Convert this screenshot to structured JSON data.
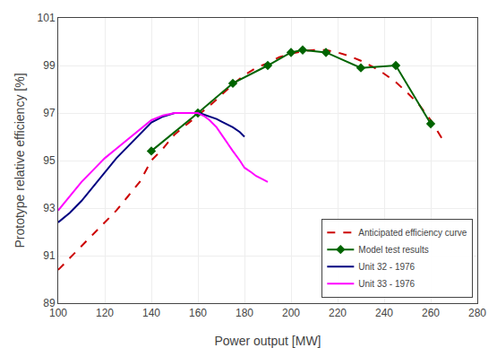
{
  "chart_data": {
    "type": "line",
    "x_label": "Power output [MW]",
    "y_label": "Prototype relative efficiency [%]",
    "xlim": [
      100,
      280
    ],
    "ylim": [
      89,
      101
    ],
    "xticks": [
      100,
      120,
      140,
      160,
      180,
      200,
      220,
      240,
      260,
      280
    ],
    "yticks": [
      89,
      91,
      93,
      95,
      97,
      99,
      101
    ],
    "grid": true,
    "legend": "lower right",
    "series": [
      {
        "name": "Anticipated efficiency curve",
        "color": "#CC0000",
        "line_style": "dashed",
        "x": [
          100,
          105,
          110,
          115,
          120,
          125,
          130,
          135,
          140,
          145,
          150,
          155,
          160,
          165,
          170,
          175,
          180,
          185,
          190,
          195,
          200,
          205,
          210,
          215,
          220,
          225,
          230,
          235,
          240,
          245,
          250,
          255,
          260,
          265
        ],
        "values": [
          90.4,
          90.9,
          91.4,
          91.9,
          92.4,
          92.9,
          93.5,
          94.1,
          95.0,
          95.5,
          96.1,
          96.5,
          96.9,
          97.3,
          97.75,
          98.2,
          98.6,
          98.9,
          99.1,
          99.35,
          99.5,
          99.6,
          99.65,
          99.65,
          99.55,
          99.4,
          99.2,
          98.95,
          98.65,
          98.3,
          97.85,
          97.35,
          96.7,
          95.9
        ]
      },
      {
        "name": "Model test results",
        "color": "#006400",
        "marker": "diamond",
        "x": [
          140,
          160,
          175,
          190,
          200,
          205,
          215,
          230,
          245,
          260
        ],
        "values": [
          95.4,
          97.0,
          98.25,
          99.0,
          99.55,
          99.65,
          99.55,
          98.9,
          99.0,
          96.55
        ]
      },
      {
        "name": "Unit 32 - 1976",
        "color": "#000080",
        "x": [
          100,
          105,
          110,
          115,
          120,
          125,
          130,
          135,
          140,
          145,
          150,
          155,
          158,
          160,
          162,
          165,
          168,
          170,
          173,
          175,
          178,
          180
        ],
        "values": [
          92.4,
          92.8,
          93.3,
          93.9,
          94.5,
          95.1,
          95.6,
          96.1,
          96.6,
          96.85,
          97.0,
          97.0,
          97.0,
          97.0,
          96.95,
          96.85,
          96.75,
          96.65,
          96.5,
          96.4,
          96.2,
          96.0
        ]
      },
      {
        "name": "Unit 33 - 1976",
        "color": "#FF00FF",
        "x": [
          100,
          105,
          110,
          115,
          120,
          125,
          130,
          135,
          140,
          145,
          150,
          155,
          158,
          160,
          163,
          165,
          168,
          170,
          173,
          175,
          178,
          180,
          183,
          185,
          188,
          190
        ],
        "values": [
          92.9,
          93.5,
          94.1,
          94.6,
          95.1,
          95.5,
          95.9,
          96.3,
          96.7,
          96.9,
          97.0,
          97.0,
          97.0,
          97.0,
          96.85,
          96.7,
          96.4,
          96.1,
          95.7,
          95.4,
          95.0,
          94.7,
          94.5,
          94.35,
          94.2,
          94.1
        ]
      }
    ]
  }
}
